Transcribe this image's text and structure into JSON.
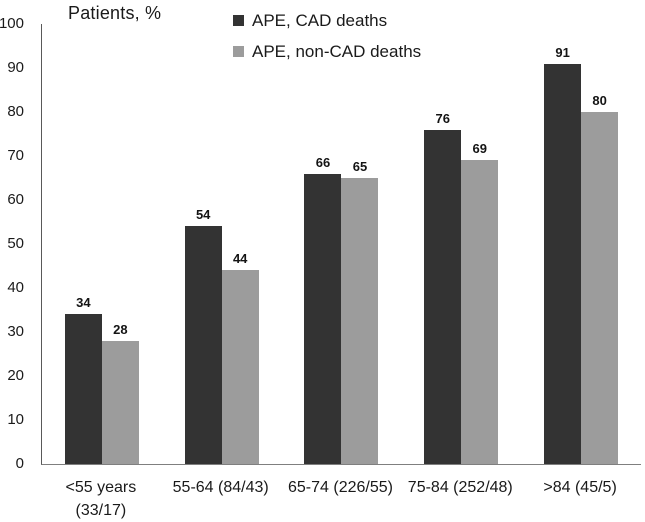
{
  "title": "Patients, %",
  "legend": {
    "items": [
      {
        "label": "APE, CAD deaths",
        "color": "#333333"
      },
      {
        "label": "APE, non-CAD deaths",
        "color": "#9c9c9c"
      }
    ]
  },
  "axes": {
    "y_ticks": [
      100,
      90,
      80,
      70,
      60,
      50,
      40,
      30,
      20,
      10,
      0
    ]
  },
  "chart_data": {
    "type": "bar",
    "title": "Patients, %",
    "categories": [
      "<55 years (33/17)",
      "55-64 (84/43)",
      "65-74 (226/55)",
      "75-84 (252/48)",
      ">84 (45/5)"
    ],
    "x_tick_lines": [
      [
        "<55 years",
        "(33/17)"
      ],
      [
        "55-64 (84/43)"
      ],
      [
        "65-74 (226/55)"
      ],
      [
        "75-84 (252/48)"
      ],
      [
        ">84 (45/5)"
      ]
    ],
    "series": [
      {
        "name": "APE, CAD deaths",
        "color": "#333333",
        "values": [
          34,
          54,
          66,
          76,
          91
        ]
      },
      {
        "name": "APE, non-CAD deaths",
        "color": "#9c9c9c",
        "values": [
          28,
          44,
          65,
          69,
          80
        ]
      }
    ],
    "xlabel": "",
    "ylabel": "Patients, %",
    "ylim": [
      0,
      100
    ],
    "y_tick_step": 10,
    "grid": false,
    "legend_position": "top",
    "bar_value_labels": true
  }
}
